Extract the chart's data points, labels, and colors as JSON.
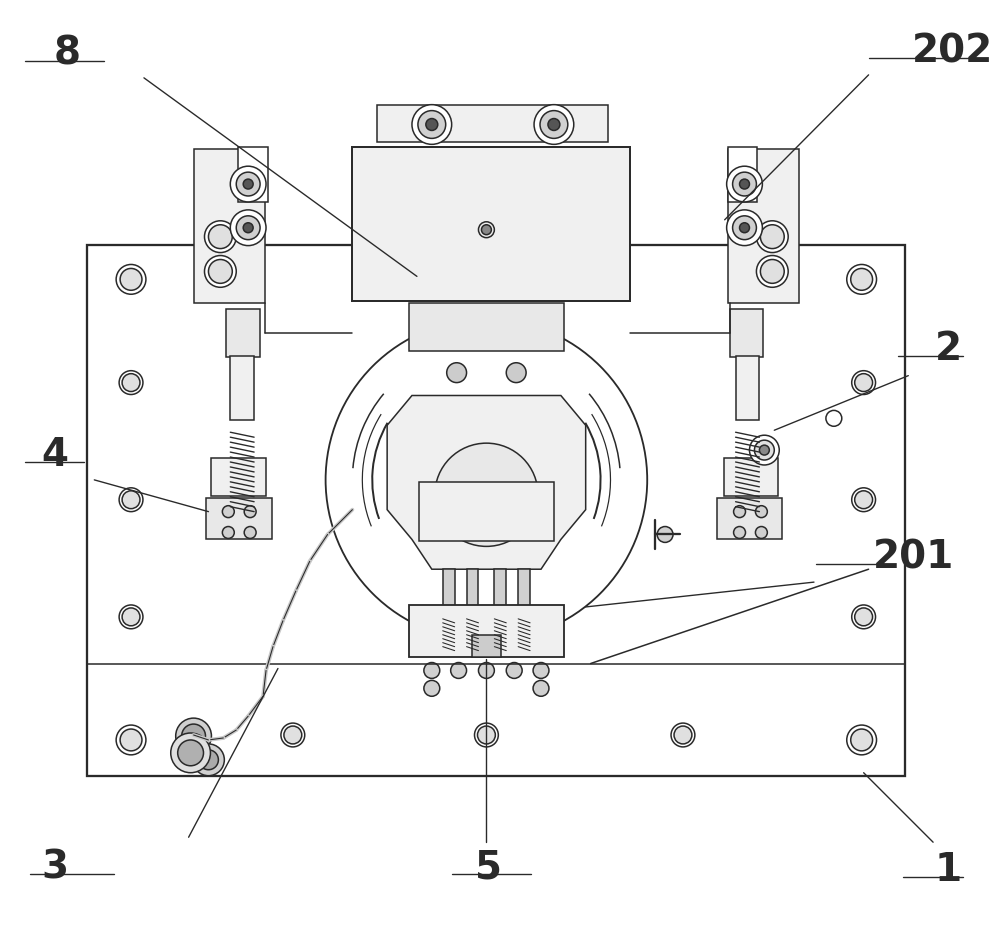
{
  "bg_color": "#ffffff",
  "line_color": "#2a2a2a",
  "line_width": 1.1,
  "fig_width": 10.0,
  "fig_height": 9.26,
  "label_fontsize": 28,
  "label_fontsize_small": 22
}
